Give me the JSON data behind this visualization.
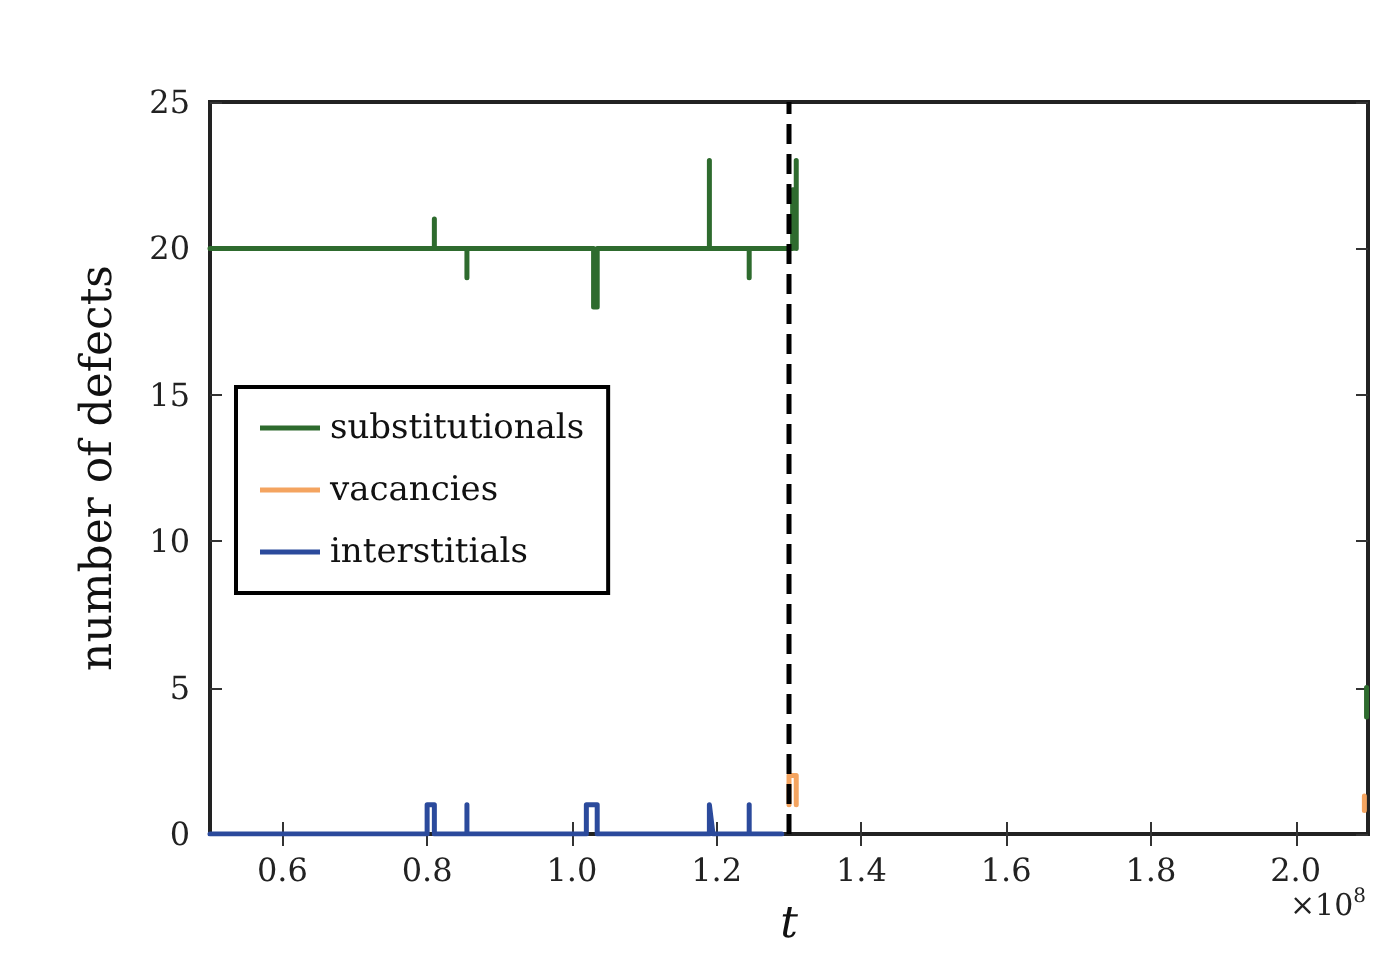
{
  "chart_data": {
    "type": "line",
    "xlabel": "t",
    "ylabel": "number of defects",
    "annotations": [
      "×10$^{8}$"
    ],
    "xlim": [
      0.5,
      2.1
    ],
    "xticks": [
      0.6,
      0.8,
      {
        "value": 1,
        "label": "1.0"
      },
      1.2,
      1.4,
      1.6,
      1.8,
      {
        "value": 2,
        "label": "2.0"
      }
    ],
    "ylim": [
      0,
      25
    ],
    "yticks": [
      0,
      5,
      10,
      15,
      20,
      25
    ],
    "grid": false,
    "legend": "left",
    "marker": "none",
    "line_style": "solid",
    "ref_lines": [
      {
        "axis": "x",
        "value": 1.3,
        "color": "#000000",
        "line_style": "dashed"
      }
    ],
    "series": [
      {
        "name": "substitutionals",
        "color": "#2e6b2e",
        "x": [
          0.5,
          0.81,
          0.81,
          0.81,
          0.855,
          0.855,
          0.855,
          1.03,
          1.03,
          1.035,
          1.035,
          1.035,
          1.19,
          1.19,
          1.19,
          1.245,
          1.245,
          1.245,
          1.305,
          1.305,
          1.31,
          1.31,
          1.31,
          null,
          2.098,
          2.098
        ],
        "values": [
          20,
          20,
          21,
          20,
          20,
          19,
          20,
          20,
          18,
          18,
          19,
          20,
          20,
          23,
          20,
          20,
          19,
          20,
          20,
          22,
          22,
          23,
          20,
          null,
          4,
          5
        ]
      },
      {
        "name": "vacancies",
        "color": "#f4a460",
        "x": [
          1.3,
          1.3,
          1.31,
          1.31,
          null,
          2.095,
          2.095
        ],
        "values": [
          1,
          2,
          2,
          1,
          null,
          0.8,
          1.3
        ]
      },
      {
        "name": "interstitials",
        "color": "#2b4a9c",
        "x": [
          0.5,
          0.8,
          0.8,
          0.81,
          0.81,
          0.855,
          0.855,
          0.855,
          1.02,
          1.02,
          1.035,
          1.035,
          1.19,
          1.19,
          1.195,
          1.245,
          1.245,
          1.245,
          1.29
        ],
        "values": [
          0,
          0,
          1,
          1,
          0,
          0,
          1,
          0,
          0,
          1,
          1,
          0,
          0,
          1,
          0,
          0,
          1,
          0,
          0
        ]
      }
    ]
  }
}
